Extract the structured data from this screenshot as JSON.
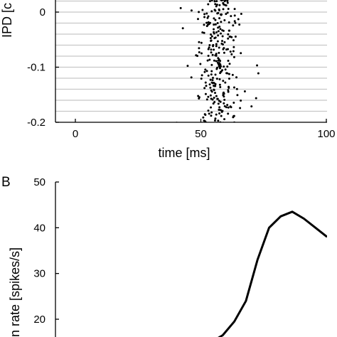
{
  "chart_data": [
    {
      "type": "scatter",
      "subtype": "raster",
      "xlabel": "time  [ms]",
      "ylabel": "IPD  [c",
      "xlim": [
        -20,
        100
      ],
      "ylim": [
        -0.2,
        0.02
      ],
      "x_ticks": [
        0,
        50,
        100
      ],
      "x_tick_labels": [
        "0",
        "50",
        "100"
      ],
      "y_ticks": [
        0,
        -0.1,
        -0.2
      ],
      "y_tick_labels": [
        "0",
        "-0.1",
        "-0.2"
      ],
      "trial_rows_ipd": [
        0.02,
        0.0,
        -0.02,
        -0.04,
        -0.06,
        -0.08,
        -0.1,
        -0.12,
        -0.14,
        -0.16,
        -0.18,
        -0.2
      ],
      "row_line_color": "#c8c8c8",
      "dot_color": "#000000",
      "spike_times_ms_range": [
        37,
        75
      ],
      "spike_times_ms_peak": 57
    },
    {
      "type": "line",
      "panel_label": "B",
      "ylabel": "n rate  [spikes/s]",
      "ylim": [
        15,
        50
      ],
      "y_ticks": [
        20,
        30,
        40,
        50
      ],
      "y_tick_labels": [
        "20",
        "30",
        "40",
        "50"
      ],
      "series": [
        {
          "x": [
            -0.1,
            -0.09,
            -0.08,
            -0.07,
            -0.06,
            -0.05,
            -0.04,
            -0.03,
            -0.02,
            -0.01,
            0.0
          ],
          "values": [
            15,
            16.5,
            19.5,
            24,
            33,
            40,
            42.5,
            43.5,
            42,
            40,
            38
          ],
          "color": "#000000"
        }
      ]
    }
  ]
}
